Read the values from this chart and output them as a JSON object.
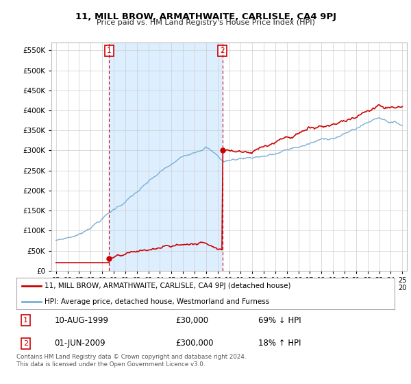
{
  "title": "11, MILL BROW, ARMATHWAITE, CARLISLE, CA4 9PJ",
  "subtitle": "Price paid vs. HM Land Registry's House Price Index (HPI)",
  "ytick_values": [
    0,
    50000,
    100000,
    150000,
    200000,
    250000,
    300000,
    350000,
    400000,
    450000,
    500000,
    550000
  ],
  "ylim": [
    0,
    570000
  ],
  "xlim_start": 1994.6,
  "xlim_end": 2025.4,
  "red_line_color": "#cc0000",
  "blue_line_color": "#7ab0d4",
  "shade_color": "#ddeeff",
  "marker1_date": 1999.61,
  "marker1_value": 30000,
  "marker2_date": 2009.42,
  "marker2_value": 300000,
  "legend_label1": "11, MILL BROW, ARMATHWAITE, CARLISLE, CA4 9PJ (detached house)",
  "legend_label2": "HPI: Average price, detached house, Westmorland and Furness",
  "annotation1_date_str": "10-AUG-1999",
  "annotation1_price_str": "£30,000",
  "annotation1_hpi_str": "69% ↓ HPI",
  "annotation2_date_str": "01-JUN-2009",
  "annotation2_price_str": "£300,000",
  "annotation2_hpi_str": "18% ↑ HPI",
  "footnote": "Contains HM Land Registry data © Crown copyright and database right 2024.\nThis data is licensed under the Open Government Licence v3.0.",
  "vline1_x": 1999.61,
  "vline2_x": 2009.42,
  "background_color": "#ffffff",
  "grid_color": "#cccccc"
}
